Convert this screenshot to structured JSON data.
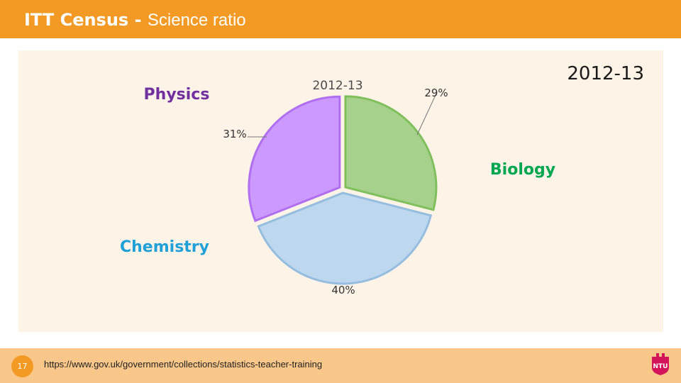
{
  "header": {
    "title_bold": "ITT Census - ",
    "title_light": "Science ratio"
  },
  "footer": {
    "page_number": "17",
    "source_url": "https://www.gov.uk/government/collections/statistics-teacher-training",
    "logo_text": "NTU"
  },
  "colors": {
    "header": "#f39a24",
    "footer": "#f9c78a",
    "physics": "#cc99ff",
    "biology": "#a6d18c",
    "chemistry": "#bdd7ee",
    "physics_text": "#7030a0",
    "biology_text": "#00a651",
    "chemistry_text": "#1fa0d8"
  },
  "chart_data": {
    "type": "pie",
    "title": "2012-13",
    "chart_title": "2012-13",
    "slices": [
      {
        "name": "Biology",
        "value": 29,
        "label": "29%"
      },
      {
        "name": "Chemistry",
        "value": 40,
        "label": "40%"
      },
      {
        "name": "Physics",
        "value": 31,
        "label": "31%"
      }
    ]
  }
}
